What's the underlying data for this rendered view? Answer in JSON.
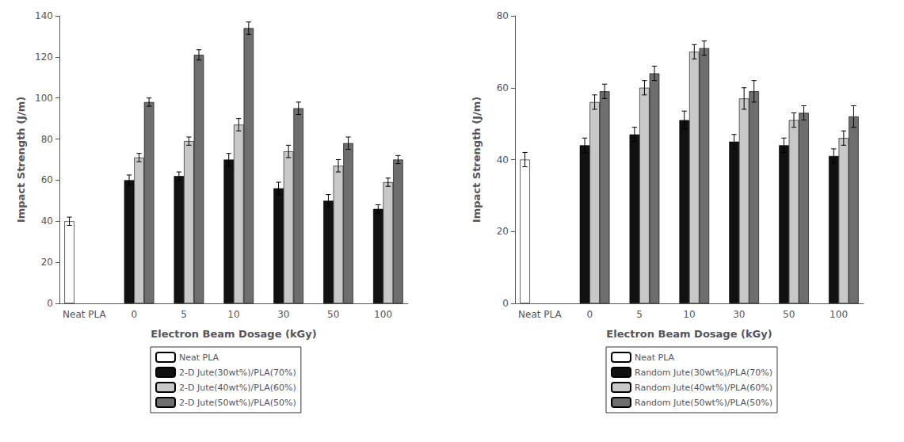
{
  "chart_data": [
    {
      "type": "bar",
      "categories": [
        "Neat PLA",
        "0",
        "5",
        "10",
        "30",
        "50",
        "100"
      ],
      "xlabel": "Electron Beam Dosage (kGy)",
      "ylabel": "Impact Strength (J/m)",
      "ylim": [
        0,
        140
      ],
      "yticks": [
        0,
        20,
        40,
        60,
        80,
        100,
        120,
        140
      ],
      "grid": false,
      "legend": "bottom",
      "series": [
        {
          "name": "Neat PLA",
          "color": "white",
          "values": [
            40,
            null,
            null,
            null,
            null,
            null,
            null
          ],
          "errors": [
            2,
            null,
            null,
            null,
            null,
            null,
            null
          ]
        },
        {
          "name": "2-D Jute(30wt%)/PLA(70%)",
          "color": "#111111",
          "values": [
            null,
            60,
            62,
            70,
            56,
            50,
            46
          ],
          "errors": [
            null,
            2.5,
            2,
            3,
            3,
            3,
            2
          ]
        },
        {
          "name": "2-D Jute(40wt%)/PLA(60%)",
          "color": "#c8c8c8",
          "values": [
            null,
            71,
            79,
            87,
            74,
            67,
            59
          ],
          "errors": [
            null,
            2,
            2,
            3,
            3,
            3,
            2
          ]
        },
        {
          "name": "2-D Jute(50wt%)/PLA(50%)",
          "color": "#6e6e6e",
          "values": [
            null,
            98,
            121,
            134,
            95,
            78,
            70
          ],
          "errors": [
            null,
            2,
            2.5,
            3,
            3,
            3,
            2
          ]
        }
      ]
    },
    {
      "type": "bar",
      "categories": [
        "Neat PLA",
        "0",
        "5",
        "10",
        "30",
        "50",
        "100"
      ],
      "xlabel": "Electron Beam Dosage (kGy)",
      "ylabel": "Impact Strength (J/m)",
      "ylim": [
        0,
        80
      ],
      "yticks": [
        0,
        20,
        40,
        60,
        80
      ],
      "grid": false,
      "legend": "bottom",
      "series": [
        {
          "name": "Neat PLA",
          "color": "white",
          "values": [
            40,
            null,
            null,
            null,
            null,
            null,
            null
          ],
          "errors": [
            2,
            null,
            null,
            null,
            null,
            null,
            null
          ]
        },
        {
          "name": "Random Jute(30wt%)/PLA(70%)",
          "color": "#111111",
          "values": [
            null,
            44,
            47,
            51,
            45,
            44,
            41
          ],
          "errors": [
            null,
            2,
            2,
            2.5,
            2,
            2,
            2
          ]
        },
        {
          "name": "Random Jute(40wt%)/PLA(60%)",
          "color": "#c8c8c8",
          "values": [
            null,
            56,
            60,
            70,
            57,
            51,
            46
          ],
          "errors": [
            null,
            2,
            2,
            2,
            3,
            2,
            2
          ]
        },
        {
          "name": "Random Jute(50wt%)/PLA(50%)",
          "color": "#6e6e6e",
          "values": [
            null,
            59,
            64,
            71,
            59,
            53,
            52
          ],
          "errors": [
            null,
            2,
            2,
            2,
            3,
            2,
            3
          ]
        }
      ]
    }
  ]
}
